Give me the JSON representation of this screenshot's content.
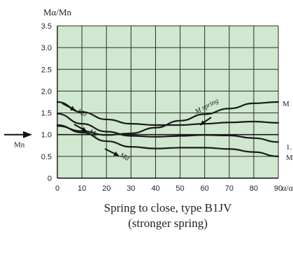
{
  "chart_data": {
    "type": "line",
    "y_axis_label": "Mα/Mn",
    "x_axis_label": "α/α",
    "x_ticks": [
      "0",
      "10",
      "20",
      "30",
      "40",
      "50",
      "60",
      "70",
      "80",
      "90"
    ],
    "y_ticks": [
      "0",
      "0.5",
      "1.0",
      "1.5",
      "2.0",
      "2.5",
      "3.0",
      "3.5"
    ],
    "xlim": [
      0,
      90
    ],
    "ylim": [
      0,
      3.5
    ],
    "grid": true,
    "background_color": "#cfe8cf",
    "line_color": "#1a1a1a",
    "left_marker_label": "Mn",
    "right_labels": [
      "M",
      "1.",
      "M"
    ],
    "series": [
      {
        "name": "M spring",
        "x": [
          0,
          10,
          20,
          30,
          40,
          50,
          60,
          70,
          80,
          90
        ],
        "y": [
          1.2,
          1.08,
          0.99,
          1.03,
          1.16,
          1.32,
          1.47,
          1.6,
          1.72,
          1.75
        ]
      },
      {
        "name": "M0",
        "x": [
          0,
          10,
          20,
          30,
          40,
          50,
          60,
          70,
          80,
          90
        ],
        "y": [
          1.75,
          1.52,
          1.35,
          1.25,
          1.22,
          1.22,
          1.25,
          1.28,
          1.3,
          1.27
        ]
      },
      {
        "name": "Mz",
        "x": [
          0,
          10,
          20,
          30,
          40,
          50,
          60,
          70,
          80,
          90
        ],
        "y": [
          1.48,
          1.25,
          1.07,
          0.97,
          0.95,
          0.97,
          0.99,
          0.98,
          0.92,
          0.83
        ]
      },
      {
        "name": "Md",
        "x": [
          0,
          10,
          20,
          30,
          40,
          50,
          60,
          70,
          80,
          90
        ],
        "y": [
          1.22,
          1.05,
          0.85,
          0.72,
          0.68,
          0.7,
          0.7,
          0.67,
          0.6,
          0.5
        ]
      },
      {
        "name": "",
        "x": [
          0,
          90
        ],
        "y": [
          1.0,
          1.0
        ]
      }
    ]
  },
  "caption": {
    "line1": "Spring to close, type B1JV",
    "line2": "(stronger spring)"
  }
}
